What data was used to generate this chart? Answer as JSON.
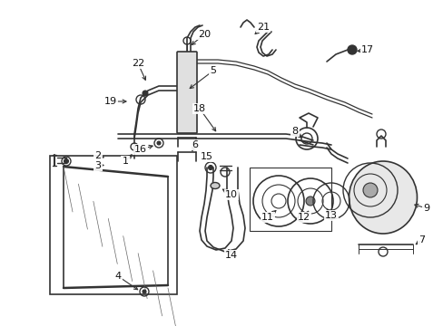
{
  "bg_color": "#ffffff",
  "line_color": "#333333",
  "fig_width": 4.89,
  "fig_height": 3.6,
  "dpi": 100,
  "xlim": [
    0,
    489
  ],
  "ylim": [
    0,
    360
  ]
}
